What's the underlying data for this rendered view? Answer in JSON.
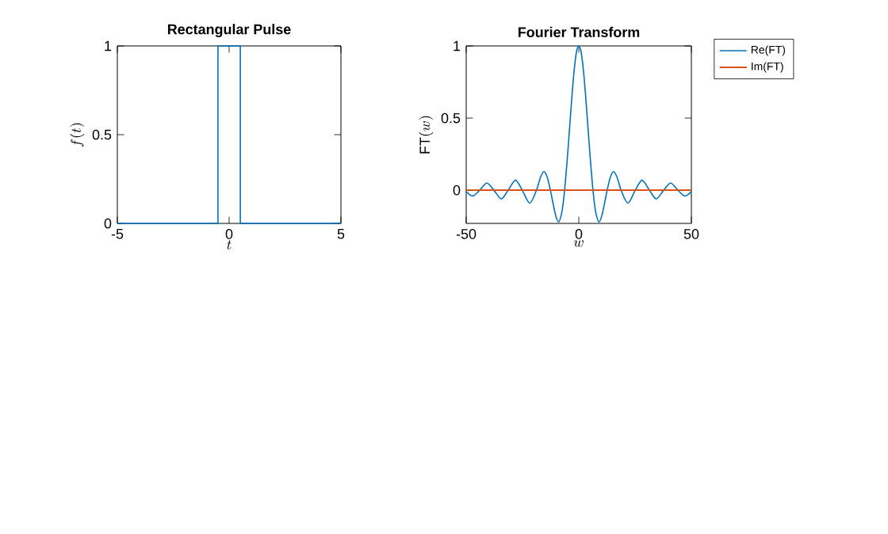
{
  "chart_data": [
    {
      "type": "line",
      "title": "Rectangular Pulse",
      "xlabel": "t",
      "ylabel": "f(t)",
      "xlim": [
        -5,
        5
      ],
      "ylim": [
        0,
        1
      ],
      "xticks": [
        -5,
        0,
        5
      ],
      "yticks": [
        0,
        0.5,
        1
      ],
      "grid": false,
      "legend": false,
      "series": [
        {
          "color": "#0072bd",
          "x": [
            -5,
            -0.5,
            -0.5,
            0.5,
            0.5,
            5
          ],
          "values": [
            0,
            0,
            1,
            1,
            0,
            0
          ]
        }
      ]
    },
    {
      "type": "line",
      "title": "Fourier Transform",
      "xlabel": "w",
      "ylabel": "\\mathrm{FT}(w)",
      "xlim": [
        -50,
        50
      ],
      "ylim": [
        -0.23,
        1
      ],
      "xticks": [
        -50,
        0,
        50
      ],
      "yticks": [
        0,
        0.5,
        1
      ],
      "grid": false,
      "legend": "top right",
      "series": [
        {
          "name": "Re(FT)",
          "color": "#0072bd",
          "x": [
            -50,
            -47.1,
            -44,
            -40.8,
            -37.7,
            -34.4,
            -31.4,
            -28.1,
            -25.1,
            -21.8,
            -18.8,
            -17,
            -15.5,
            -14,
            -12.6,
            -10.5,
            -9,
            -7.5,
            -6.3,
            -5,
            -4,
            -3,
            -2,
            -1,
            0,
            1,
            2,
            3,
            4,
            5,
            6.3,
            7.5,
            9,
            10.5,
            12.6,
            14,
            15.5,
            17,
            18.8,
            21.8,
            25.1,
            28.1,
            31.4,
            34.4,
            37.7,
            40.8,
            44,
            47.1,
            50
          ],
          "values": [
            -0.01,
            -0.04,
            0,
            0.05,
            0,
            -0.06,
            0,
            0.07,
            0,
            -0.09,
            0,
            0.09,
            0.13,
            0.09,
            0,
            -0.16,
            -0.22,
            -0.15,
            0,
            0.24,
            0.45,
            0.66,
            0.84,
            0.96,
            1,
            0.96,
            0.84,
            0.66,
            0.45,
            0.24,
            0,
            -0.15,
            -0.22,
            -0.16,
            0,
            0.09,
            0.13,
            0.09,
            0,
            -0.09,
            0,
            0.07,
            0,
            -0.06,
            0,
            0.05,
            0,
            -0.04,
            -0.01
          ]
        },
        {
          "name": "Im(FT)",
          "color": "#d95319",
          "x": [
            -50,
            50
          ],
          "values": [
            0,
            0
          ]
        }
      ]
    }
  ]
}
